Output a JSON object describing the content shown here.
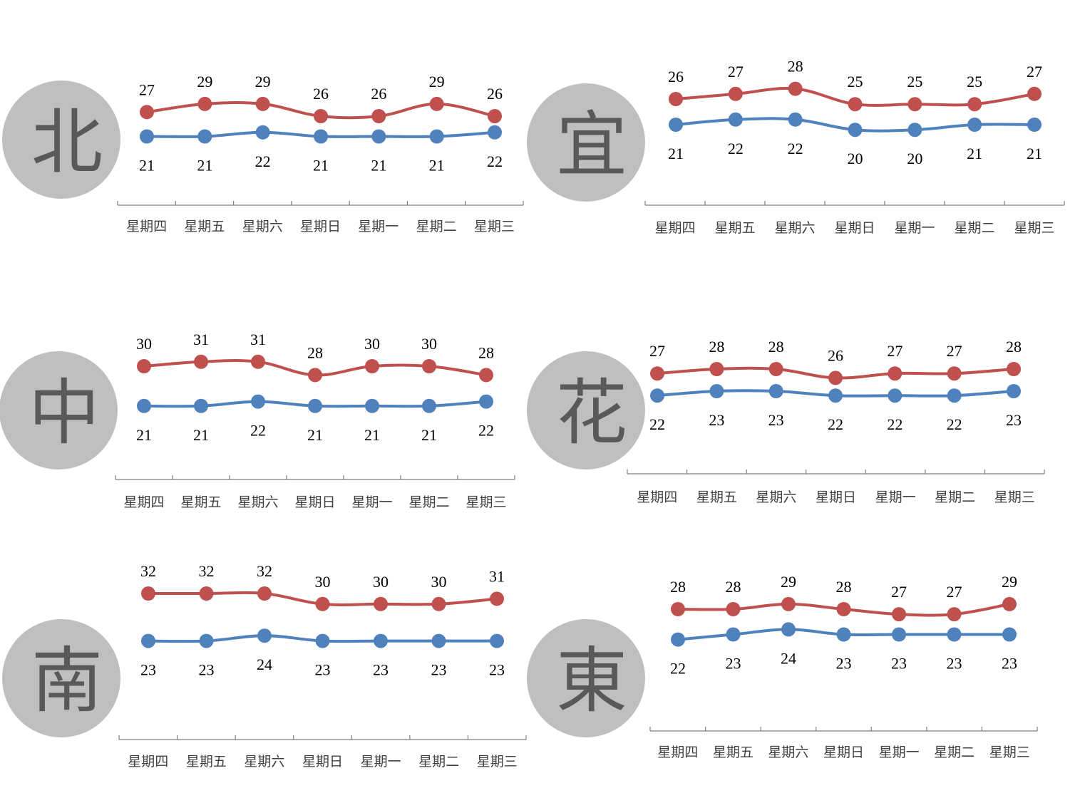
{
  "colors": {
    "high_series": "#c0504d",
    "low_series": "#4f81bd",
    "badge": "#bfbfbf",
    "badge_text": "#595959",
    "axis": "#7f7f7f"
  },
  "chart_data": [
    {
      "type": "line",
      "region_badge": "北",
      "categories": [
        "星期四",
        "星期五",
        "星期六",
        "星期日",
        "星期一",
        "星期二",
        "星期三"
      ],
      "series": [
        {
          "role": "high",
          "values": [
            27,
            29,
            29,
            26,
            26,
            29,
            26
          ]
        },
        {
          "role": "low",
          "values": [
            21,
            21,
            22,
            21,
            21,
            21,
            22
          ]
        }
      ],
      "data_labels": true,
      "legend": "none",
      "grid": false
    },
    {
      "type": "line",
      "region_badge": "宜",
      "categories": [
        "星期四",
        "星期五",
        "星期六",
        "星期日",
        "星期一",
        "星期二",
        "星期三"
      ],
      "series": [
        {
          "role": "high",
          "values": [
            26,
            27,
            28,
            25,
            25,
            25,
            27
          ]
        },
        {
          "role": "low",
          "values": [
            21,
            22,
            22,
            20,
            20,
            21,
            21
          ]
        }
      ],
      "data_labels": true,
      "legend": "none",
      "grid": false
    },
    {
      "type": "line",
      "region_badge": "中",
      "categories": [
        "星期四",
        "星期五",
        "星期六",
        "星期日",
        "星期一",
        "星期二",
        "星期三"
      ],
      "series": [
        {
          "role": "high",
          "values": [
            30,
            31,
            31,
            28,
            30,
            30,
            28
          ]
        },
        {
          "role": "low",
          "values": [
            21,
            21,
            22,
            21,
            21,
            21,
            22
          ]
        }
      ],
      "data_labels": true,
      "legend": "none",
      "grid": false
    },
    {
      "type": "line",
      "region_badge": "花",
      "categories": [
        "星期四",
        "星期五",
        "星期六",
        "星期日",
        "星期一",
        "星期二",
        "星期三"
      ],
      "series": [
        {
          "role": "high",
          "values": [
            27,
            28,
            28,
            26,
            27,
            27,
            28
          ]
        },
        {
          "role": "low",
          "values": [
            22,
            23,
            23,
            22,
            22,
            22,
            23
          ]
        }
      ],
      "data_labels": true,
      "legend": "none",
      "grid": false
    },
    {
      "type": "line",
      "region_badge": "南",
      "categories": [
        "星期四",
        "星期五",
        "星期六",
        "星期日",
        "星期一",
        "星期二",
        "星期三"
      ],
      "series": [
        {
          "role": "high",
          "values": [
            32,
            32,
            32,
            30,
            30,
            30,
            31
          ]
        },
        {
          "role": "low",
          "values": [
            23,
            23,
            24,
            23,
            23,
            23,
            23
          ]
        }
      ],
      "data_labels": true,
      "legend": "none",
      "grid": false
    },
    {
      "type": "line",
      "region_badge": "東",
      "categories": [
        "星期四",
        "星期五",
        "星期六",
        "星期日",
        "星期一",
        "星期二",
        "星期三"
      ],
      "series": [
        {
          "role": "high",
          "values": [
            28,
            28,
            29,
            28,
            27,
            27,
            29
          ]
        },
        {
          "role": "low",
          "values": [
            22,
            23,
            24,
            23,
            23,
            23,
            23
          ]
        }
      ],
      "data_labels": true,
      "legend": "none",
      "grid": false
    }
  ]
}
